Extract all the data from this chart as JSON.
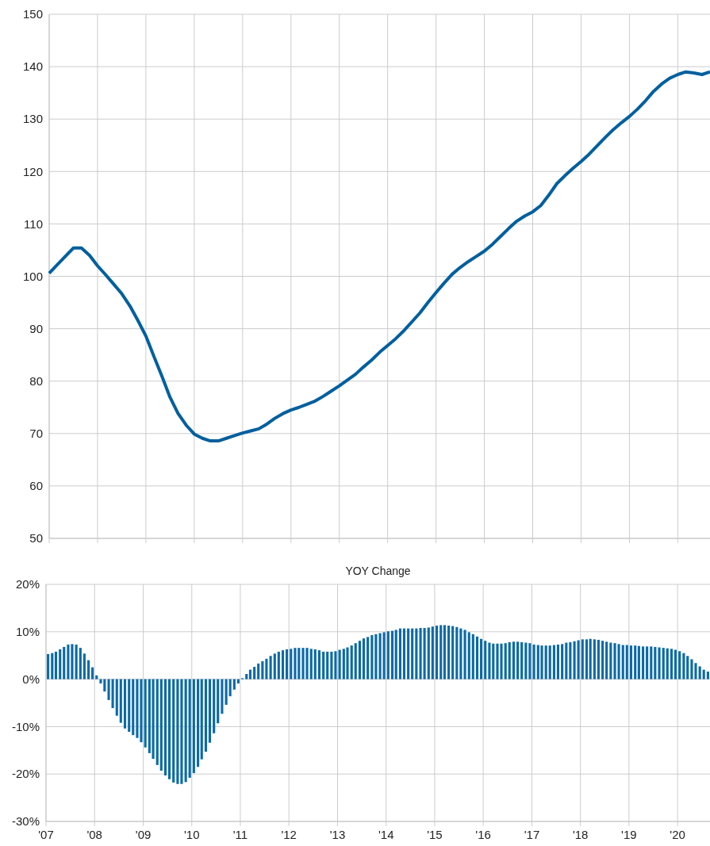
{
  "chart_data": [
    {
      "type": "line",
      "categories": [
        null,
        null,
        null,
        null,
        null,
        null,
        null,
        null,
        null,
        null,
        null,
        null,
        null,
        null,
        null,
        null,
        null,
        null,
        null,
        null,
        null,
        null,
        null,
        null,
        null,
        null,
        null,
        null,
        null,
        null,
        null,
        null,
        null,
        null,
        null,
        null,
        null,
        null,
        null,
        null,
        null,
        null,
        null,
        null,
        null,
        null,
        null,
        null,
        null,
        null,
        null,
        null,
        null,
        null,
        null,
        null,
        null,
        null,
        null,
        null,
        null,
        null,
        null,
        null,
        null,
        null,
        null,
        null,
        null,
        null,
        null,
        null,
        null,
        null,
        null,
        null,
        null,
        null,
        null,
        null,
        null,
        null,
        null
      ],
      "values": [
        100.6,
        102.2,
        103.8,
        105.4,
        105.4,
        104.0,
        102.0,
        100.3,
        98.5,
        96.7,
        94.4,
        91.6,
        88.6,
        84.7,
        80.9,
        76.9,
        73.8,
        71.6,
        69.9,
        69.1,
        68.6,
        68.6,
        69.1,
        69.6,
        70.1,
        70.5,
        70.9,
        71.8,
        72.9,
        73.8,
        74.5,
        75.0,
        75.6,
        76.2,
        77.1,
        78.1,
        79.1,
        80.2,
        81.3,
        82.7,
        84.0,
        85.5,
        86.8,
        88.1,
        89.6,
        91.3,
        93.0,
        95.0,
        96.9,
        98.7,
        100.4,
        101.7,
        102.8,
        103.8,
        104.8,
        106.1,
        107.6,
        109.1,
        110.5,
        111.5,
        112.3,
        113.5,
        115.5,
        117.7,
        119.2,
        120.6,
        121.9,
        123.3,
        124.9,
        126.5,
        128.0,
        129.3,
        130.5,
        131.9,
        133.5,
        135.3,
        136.7,
        137.8,
        138.5,
        139.0,
        138.8,
        138.5,
        139.0
      ],
      "color": "#005f9e",
      "ylim": [
        50,
        150
      ],
      "yticks": [
        50,
        60,
        70,
        80,
        90,
        100,
        110,
        120,
        130,
        140,
        150
      ],
      "grid": true,
      "tick_labels": "y"
    },
    {
      "type": "bar",
      "title": "YOY Change",
      "x": [
        "2007-01",
        "2007-02",
        "2007-03",
        "2007-04",
        "2007-05",
        "2007-06",
        "2007-07",
        "2007-08",
        "2007-09",
        "2007-10",
        "2007-11",
        "2007-12",
        "2008-01",
        "2008-02",
        "2008-03",
        "2008-04",
        "2008-05",
        "2008-06",
        "2008-07",
        "2008-08",
        "2008-09",
        "2008-10",
        "2008-11",
        "2008-12",
        "2009-01",
        "2009-02",
        "2009-03",
        "2009-04",
        "2009-05",
        "2009-06",
        "2009-07",
        "2009-08",
        "2009-09",
        "2009-10",
        "2009-11",
        "2009-12",
        "2010-01",
        "2010-02",
        "2010-03",
        "2010-04",
        "2010-05",
        "2010-06",
        "2010-07",
        "2010-08",
        "2010-09",
        "2010-10",
        "2010-11",
        "2010-12",
        "2011-01",
        "2011-02",
        "2011-03",
        "2011-04",
        "2011-05",
        "2011-06",
        "2011-07",
        "2011-08",
        "2011-09",
        "2011-10",
        "2011-11",
        "2011-12",
        "2012-01",
        "2012-02",
        "2012-03",
        "2012-04",
        "2012-05",
        "2012-06",
        "2012-07",
        "2012-08",
        "2012-09",
        "2012-10",
        "2012-11",
        "2012-12",
        "2013-01",
        "2013-02",
        "2013-03",
        "2013-04",
        "2013-05",
        "2013-06",
        "2013-07",
        "2013-08",
        "2013-09",
        "2013-10",
        "2013-11",
        "2013-12",
        "2014-01",
        "2014-02",
        "2014-03",
        "2014-04",
        "2014-05",
        "2014-06",
        "2014-07",
        "2014-08",
        "2014-09",
        "2014-10",
        "2014-11",
        "2014-12",
        "2015-01",
        "2015-02",
        "2015-03",
        "2015-04",
        "2015-05",
        "2015-06",
        "2015-07",
        "2015-08",
        "2015-09",
        "2015-10",
        "2015-11",
        "2015-12",
        "2016-01",
        "2016-02",
        "2016-03",
        "2016-04",
        "2016-05",
        "2016-06",
        "2016-07",
        "2016-08",
        "2016-09",
        "2016-10",
        "2016-11",
        "2016-12",
        "2017-01",
        "2017-02",
        "2017-03",
        "2017-04",
        "2017-05",
        "2017-06",
        "2017-07",
        "2017-08",
        "2017-09",
        "2017-10",
        "2017-11",
        "2017-12",
        "2018-01",
        "2018-02",
        "2018-03",
        "2018-04",
        "2018-05",
        "2018-06",
        "2018-07",
        "2018-08",
        "2018-09",
        "2018-10",
        "2018-11",
        "2018-12",
        "2019-01",
        "2019-02",
        "2019-03",
        "2019-04",
        "2019-05",
        "2019-06",
        "2019-07",
        "2019-08",
        "2019-09",
        "2019-10",
        "2019-11",
        "2019-12",
        "2020-01",
        "2020-02",
        "2020-03",
        "2020-04",
        "2020-05",
        "2020-06",
        "2020-07",
        "2020-08"
      ],
      "values": [
        5.3,
        5.5,
        5.8,
        6.3,
        6.8,
        7.3,
        7.4,
        7.3,
        6.6,
        5.4,
        4.0,
        2.5,
        0.8,
        -0.9,
        -2.6,
        -4.4,
        -6.1,
        -7.7,
        -9.2,
        -10.4,
        -11.1,
        -11.8,
        -12.4,
        -13.3,
        -14.4,
        -15.6,
        -16.8,
        -18.1,
        -19.3,
        -20.3,
        -21.1,
        -21.8,
        -22.1,
        -22.1,
        -21.7,
        -20.8,
        -19.8,
        -18.5,
        -16.9,
        -15.3,
        -13.4,
        -11.4,
        -9.3,
        -7.3,
        -5.4,
        -3.6,
        -2.2,
        -0.9,
        0.2,
        1.1,
        2.0,
        2.6,
        3.3,
        3.8,
        4.3,
        4.9,
        5.4,
        5.8,
        6.1,
        6.3,
        6.4,
        6.6,
        6.6,
        6.6,
        6.6,
        6.4,
        6.3,
        6.1,
        5.8,
        5.8,
        5.8,
        5.9,
        6.2,
        6.4,
        6.7,
        7.1,
        7.6,
        8.1,
        8.6,
        8.9,
        9.3,
        9.5,
        9.7,
        9.9,
        10.1,
        10.2,
        10.4,
        10.7,
        10.7,
        10.7,
        10.7,
        10.7,
        10.8,
        10.8,
        10.9,
        11.1,
        11.3,
        11.4,
        11.4,
        11.3,
        11.2,
        11.0,
        10.7,
        10.4,
        9.9,
        9.5,
        9.0,
        8.5,
        8.1,
        7.7,
        7.5,
        7.5,
        7.5,
        7.6,
        7.8,
        7.9,
        7.9,
        7.8,
        7.7,
        7.6,
        7.3,
        7.2,
        7.1,
        7.1,
        7.1,
        7.2,
        7.3,
        7.4,
        7.7,
        7.8,
        8.0,
        8.2,
        8.4,
        8.4,
        8.5,
        8.4,
        8.3,
        8.1,
        7.9,
        7.7,
        7.6,
        7.4,
        7.2,
        7.2,
        7.1,
        7.1,
        7.0,
        6.9,
        6.9,
        6.9,
        6.8,
        6.7,
        6.6,
        6.5,
        6.4,
        6.2,
        5.9,
        5.5,
        4.9,
        4.2,
        3.4,
        2.7,
        2.0,
        1.6
      ],
      "color": "#0b6aa6",
      "xlim": [
        "2007",
        "2020-09"
      ],
      "xticks": [
        {
          "value": "2007",
          "label": "'07"
        },
        {
          "value": "2008",
          "label": "'08"
        },
        {
          "value": "2009",
          "label": "'09"
        },
        {
          "value": "2010",
          "label": "'10"
        },
        {
          "value": "2011",
          "label": "'11"
        },
        {
          "value": "2012",
          "label": "'12"
        },
        {
          "value": "2013",
          "label": "'13"
        },
        {
          "value": "2014",
          "label": "'14"
        },
        {
          "value": "2015",
          "label": "'15"
        },
        {
          "value": "2016",
          "label": "'16"
        },
        {
          "value": "2017",
          "label": "'17"
        },
        {
          "value": "2018",
          "label": "'18"
        },
        {
          "value": "2019",
          "label": "'19"
        },
        {
          "value": "2020",
          "label": "'20"
        }
      ],
      "ylim": [
        -30,
        20
      ],
      "yticks": [
        {
          "value": -30,
          "label": "-30%"
        },
        {
          "value": -20,
          "label": "-20%"
        },
        {
          "value": -10,
          "label": "-10%"
        },
        {
          "value": 0,
          "label": "0%"
        },
        {
          "value": 10,
          "label": "10%"
        },
        {
          "value": 20,
          "label": "20%"
        }
      ],
      "grid": true
    }
  ]
}
